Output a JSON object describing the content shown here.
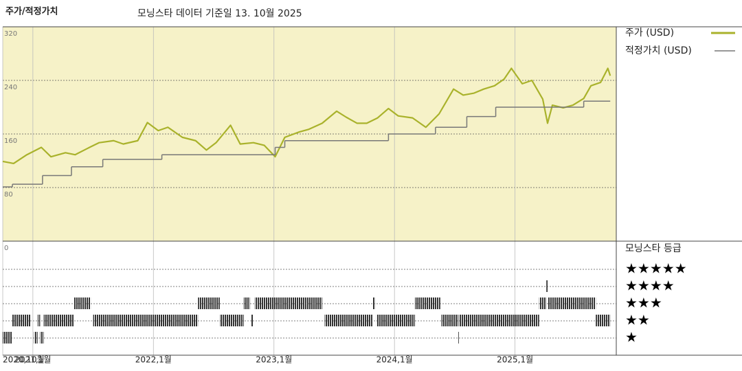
{
  "chart_data": {
    "type": "line",
    "title": "주가/적정가치",
    "subtitle": "모닝스타 데이터 기준일 13. 10월 2025",
    "xlim": [
      2020.75,
      2025.84
    ],
    "xticks": [
      {
        "value": 2020.75,
        "label": "2020,10월"
      },
      {
        "value": 2021,
        "label": "2021,1월"
      },
      {
        "value": 2022,
        "label": "2022,1월"
      },
      {
        "value": 2023,
        "label": "2023,1월"
      },
      {
        "value": 2024,
        "label": "2024,1월"
      },
      {
        "value": 2025,
        "label": "2025,1월"
      }
    ],
    "ylim": [
      0,
      320
    ],
    "yticks": [
      0,
      80,
      160,
      240,
      320
    ],
    "grid": true,
    "series": [
      {
        "name": "주가 (USD)",
        "color": "#a9b22b",
        "x": [
          2020.75,
          2020.84,
          2020.95,
          2021.07,
          2021.15,
          2021.27,
          2021.35,
          2021.47,
          2021.55,
          2021.67,
          2021.75,
          2021.87,
          2021.95,
          2022.04,
          2022.12,
          2022.24,
          2022.35,
          2022.44,
          2022.52,
          2022.64,
          2022.72,
          2022.83,
          2022.92,
          2023.01,
          2023.09,
          2023.21,
          2023.29,
          2023.4,
          2023.52,
          2023.6,
          2023.69,
          2023.77,
          2023.86,
          2023.95,
          2024.03,
          2024.15,
          2024.26,
          2024.37,
          2024.49,
          2024.57,
          2024.66,
          2024.74,
          2024.83,
          2024.91,
          2024.97,
          2025.06,
          2025.14,
          2025.23,
          2025.27,
          2025.31,
          2025.4,
          2025.48,
          2025.57,
          2025.63,
          2025.71,
          2025.77,
          2025.79
        ],
        "values": [
          119,
          116,
          129,
          140,
          126,
          132,
          129,
          140,
          147,
          150,
          145,
          150,
          177,
          165,
          170,
          155,
          150,
          136,
          147,
          173,
          145,
          147,
          143,
          126,
          155,
          163,
          167,
          176,
          194,
          185,
          176,
          176,
          184,
          198,
          187,
          184,
          170,
          190,
          227,
          218,
          221,
          227,
          232,
          242,
          258,
          235,
          240,
          212,
          176,
          203,
          199,
          203,
          213,
          232,
          237,
          258,
          247
        ]
      },
      {
        "name": "적정가치 (USD)",
        "color": "#777777",
        "step": true,
        "x": [
          2020.75,
          2020.83,
          2021.08,
          2021.32,
          2021.58,
          2022.07,
          2023.01,
          2023.09,
          2023.95,
          2024.34,
          2024.6,
          2024.84,
          2025.57
        ],
        "values": [
          81,
          85,
          98,
          111,
          122,
          129,
          140,
          150,
          160,
          170,
          186,
          200,
          209
        ]
      }
    ],
    "rating_title": "모닝스타 등급",
    "rating_levels": [
      {
        "value": 5,
        "label": "★★★★★"
      },
      {
        "value": 4,
        "label": "★★★★"
      },
      {
        "value": 3,
        "label": "★★★"
      },
      {
        "value": 2,
        "label": "★★"
      },
      {
        "value": 1,
        "label": "★"
      }
    ],
    "ratings": [
      {
        "start": 2020.75,
        "end": 2020.83,
        "stars": 1
      },
      {
        "start": 2020.83,
        "end": 2020.98,
        "stars": 2
      },
      {
        "start": 2021.01,
        "end": 2021.04,
        "stars": 1
      },
      {
        "start": 2021.04,
        "end": 2021.06,
        "stars": 2
      },
      {
        "start": 2021.06,
        "end": 2021.09,
        "stars": 1
      },
      {
        "start": 2021.09,
        "end": 2021.34,
        "stars": 2
      },
      {
        "start": 2021.34,
        "end": 2021.48,
        "stars": 3
      },
      {
        "start": 2021.5,
        "end": 2022.37,
        "stars": 2
      },
      {
        "start": 2022.37,
        "end": 2022.55,
        "stars": 3
      },
      {
        "start": 2022.55,
        "end": 2022.75,
        "stars": 2
      },
      {
        "start": 2022.75,
        "end": 2022.8,
        "stars": 3
      },
      {
        "start": 2022.81,
        "end": 2022.83,
        "stars": 2
      },
      {
        "start": 2022.84,
        "end": 2023.4,
        "stars": 3
      },
      {
        "start": 2023.42,
        "end": 2023.82,
        "stars": 2
      },
      {
        "start": 2023.82,
        "end": 2023.84,
        "stars": 3
      },
      {
        "start": 2023.85,
        "end": 2024.17,
        "stars": 2
      },
      {
        "start": 2024.17,
        "end": 2024.38,
        "stars": 3
      },
      {
        "start": 2024.39,
        "end": 2024.53,
        "stars": 2
      },
      {
        "start": 2024.53,
        "end": 2024.54,
        "stars": 1
      },
      {
        "start": 2024.54,
        "end": 2025.2,
        "stars": 2
      },
      {
        "start": 2025.2,
        "end": 2025.26,
        "stars": 3
      },
      {
        "start": 2025.26,
        "end": 2025.27,
        "stars": 4
      },
      {
        "start": 2025.27,
        "end": 2025.67,
        "stars": 3
      },
      {
        "start": 2025.67,
        "end": 2025.79,
        "stars": 2
      }
    ]
  }
}
